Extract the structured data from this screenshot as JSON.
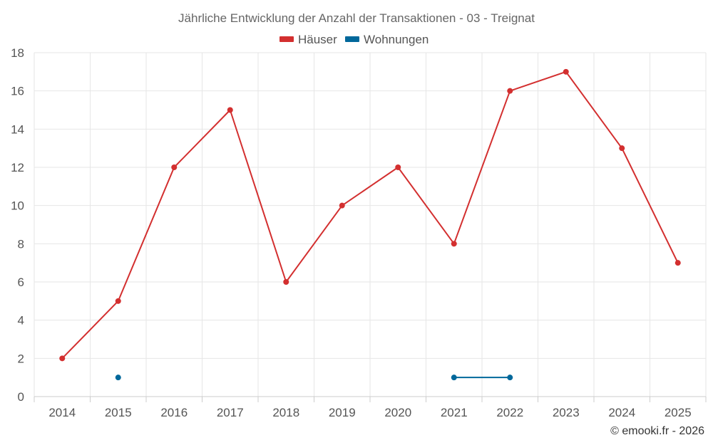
{
  "chart_data": {
    "type": "line",
    "title": "Jährliche Entwicklung der Anzahl der Transaktionen - 03 - Treignat",
    "categories": [
      "2014",
      "2015",
      "2016",
      "2017",
      "2018",
      "2019",
      "2020",
      "2021",
      "2022",
      "2023",
      "2024",
      "2025"
    ],
    "ylim": [
      0,
      18
    ],
    "yticks": [
      0,
      2,
      4,
      6,
      8,
      10,
      12,
      14,
      16,
      18
    ],
    "grid": true,
    "legend_position": "top-center",
    "series": [
      {
        "name": "Häuser",
        "color": "#d32f2f",
        "values": [
          2,
          5,
          12,
          15,
          6,
          10,
          12,
          8,
          16,
          17,
          13,
          7
        ]
      },
      {
        "name": "Wohnungen",
        "color": "#01689b",
        "values": [
          null,
          1,
          null,
          null,
          null,
          null,
          null,
          1,
          1,
          null,
          null,
          null
        ]
      }
    ],
    "credit": "© emooki.fr - 2026"
  }
}
